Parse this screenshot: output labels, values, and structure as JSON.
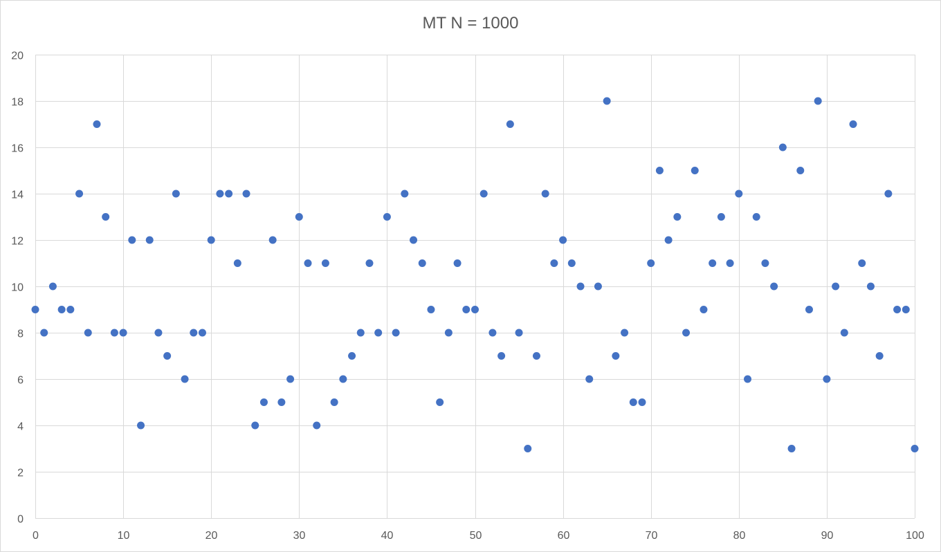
{
  "chart_data": {
    "type": "scatter",
    "title": "MT N = 1000",
    "xlabel": "",
    "ylabel": "",
    "xlim": [
      0,
      100
    ],
    "ylim": [
      0,
      20
    ],
    "x_ticks": [
      0,
      10,
      20,
      30,
      40,
      50,
      60,
      70,
      80,
      90,
      100
    ],
    "y_ticks": [
      0,
      2,
      4,
      6,
      8,
      10,
      12,
      14,
      16,
      18,
      20
    ],
    "grid": true,
    "legend": "none",
    "marker_color": "#4472c4",
    "grid_color": "#d9d9d9",
    "series": [
      {
        "x": [
          0,
          1,
          2,
          3,
          4,
          5,
          6,
          7,
          8,
          9,
          10,
          11,
          12,
          13,
          14,
          15,
          16,
          17,
          18,
          19,
          20,
          21,
          22,
          23,
          24,
          25,
          26,
          27,
          28,
          29,
          30,
          31,
          32,
          33,
          34,
          35,
          36,
          37,
          38,
          39,
          40,
          41,
          42,
          43,
          44,
          45,
          46,
          47,
          48,
          49,
          50,
          51,
          52,
          53,
          54,
          55,
          56,
          57,
          58,
          59,
          60,
          61,
          62,
          63,
          64,
          65,
          66,
          67,
          68,
          69,
          70,
          71,
          72,
          73,
          74,
          75,
          76,
          77,
          78,
          79,
          80,
          81,
          82,
          83,
          84,
          85,
          86,
          87,
          88,
          89,
          90,
          91,
          92,
          93,
          94,
          95,
          96,
          97,
          98,
          99,
          100
        ],
        "y": [
          9,
          8,
          10,
          9,
          9,
          14,
          8,
          17,
          13,
          8,
          8,
          12,
          4,
          12,
          8,
          7,
          14,
          6,
          8,
          8,
          12,
          14,
          14,
          11,
          14,
          4,
          5,
          12,
          5,
          6,
          13,
          11,
          4,
          11,
          5,
          6,
          7,
          8,
          11,
          8,
          13,
          8,
          14,
          12,
          11,
          9,
          5,
          8,
          11,
          9,
          9,
          14,
          8,
          7,
          17,
          8,
          3,
          7,
          14,
          11,
          12,
          11,
          10,
          6,
          10,
          18,
          7,
          8,
          5,
          5,
          11,
          15,
          12,
          13,
          8,
          15,
          9,
          11,
          13,
          11,
          14,
          6,
          13,
          11,
          10,
          16,
          3,
          15,
          9,
          18,
          6,
          10,
          8,
          17,
          11,
          10,
          7,
          14,
          9,
          9,
          3
        ]
      }
    ]
  }
}
